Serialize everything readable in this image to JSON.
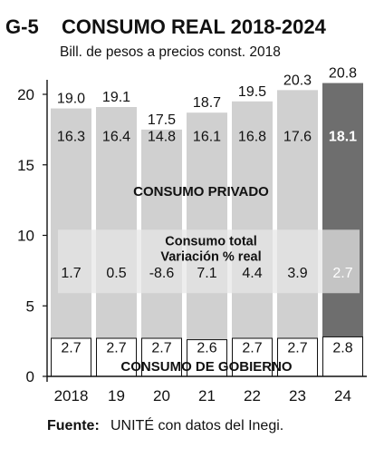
{
  "header": {
    "code": "G-5",
    "title": "CONSUMO REAL 2018-2024",
    "subtitle": "Bill. de pesos a precios const. 2018"
  },
  "footer": {
    "source_label": "Fuente:",
    "source_text": "UNITÉ con datos del Inegi."
  },
  "colors": {
    "bar": "#d0d0d0",
    "bar_highlight": "#6e6e6e",
    "band": "#e6e6e6",
    "text": "#111111",
    "white": "#ffffff"
  },
  "chart_data": {
    "type": "bar",
    "stacked": true,
    "categories": [
      "2018",
      "19",
      "20",
      "21",
      "22",
      "23",
      "24"
    ],
    "highlight_index": 6,
    "series": [
      {
        "name": "CONSUMO DE GOBIERNO",
        "values": [
          2.7,
          2.7,
          2.7,
          2.6,
          2.7,
          2.7,
          2.8
        ]
      },
      {
        "name": "CONSUMO PRIVADO",
        "values": [
          16.3,
          16.4,
          14.8,
          16.1,
          16.8,
          17.6,
          18.1
        ]
      }
    ],
    "totals": [
      19.0,
      19.1,
      17.5,
      18.7,
      19.5,
      20.3,
      20.8
    ],
    "totals_labels": [
      "19.0",
      "19.1",
      "17.5",
      "18.7",
      "19.5",
      "20.3",
      "20.8"
    ],
    "private_labels": [
      "16.3",
      "16.4",
      "14.8",
      "16.1",
      "16.8",
      "17.6",
      "18.1"
    ],
    "gov_labels": [
      "2.7",
      "2.7",
      "2.7",
      "2.6",
      "2.7",
      "2.7",
      "2.8"
    ],
    "variation": {
      "title_line1": "Consumo total",
      "title_line2": "Variación % real",
      "values": [
        1.7,
        0.5,
        -8.6,
        7.1,
        4.4,
        3.9,
        2.7
      ],
      "labels": [
        "1.7",
        "0.5",
        "-8.6",
        "7.1",
        "4.4",
        "3.9",
        "2.7"
      ]
    },
    "y_ticks": [
      "0",
      "5",
      "10",
      "15",
      "20"
    ],
    "ylim": [
      0,
      21
    ],
    "grid": false,
    "xlabel": "",
    "ylabel": ""
  }
}
